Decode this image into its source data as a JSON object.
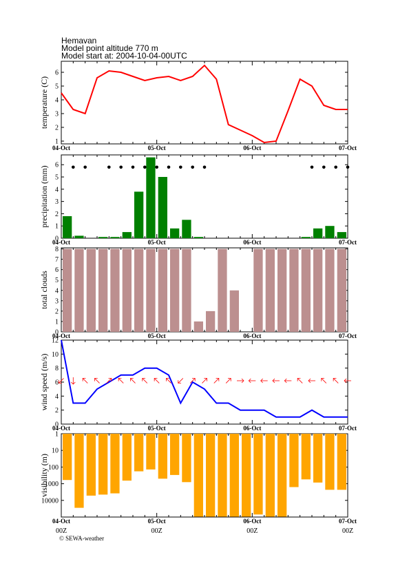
{
  "header": {
    "location": "Hemavan",
    "altitude": "Model point altitude  770 m",
    "start": "Model start at: 2004-10-04-00UTC"
  },
  "credit": "© SEWA-weather",
  "x_axis": {
    "date_labels": [
      "04-Oct",
      "05-Oct",
      "06-Oct",
      "07-Oct"
    ],
    "hour_labels": [
      "00Z",
      "00Z",
      "00Z",
      "00Z"
    ],
    "range_hours": [
      0,
      72
    ],
    "step_hours": 3
  },
  "colors": {
    "temperature": "#ff0000",
    "precipitation": "#008000",
    "clouds": "#bc8f8f",
    "wind_speed": "#0000ff",
    "wind_arrows": "#ff0000",
    "visibility": "#ffa500"
  },
  "chart_data": [
    {
      "type": "line",
      "ylabel": "temperature (C)",
      "x_hours": [
        0,
        3,
        6,
        9,
        12,
        15,
        18,
        21,
        24,
        27,
        30,
        33,
        36,
        39,
        42,
        45,
        48,
        51,
        54,
        57,
        60,
        63,
        66,
        69,
        72
      ],
      "values": [
        4.5,
        3.3,
        3.0,
        5.6,
        6.1,
        6.0,
        5.7,
        5.4,
        5.6,
        5.7,
        5.4,
        5.7,
        6.5,
        5.5,
        2.2,
        1.8,
        1.4,
        0.9,
        1.0,
        3.2,
        5.5,
        5.0,
        3.6,
        3.3,
        3.3
      ],
      "ylim": [
        0.8,
        6.8
      ],
      "yticks": [
        "1",
        "2",
        "3",
        "4",
        "5",
        "6"
      ]
    },
    {
      "type": "bar",
      "ylabel": "precipitation (mm)",
      "x_hours": [
        3,
        6,
        9,
        12,
        15,
        18,
        21,
        24,
        27,
        30,
        33,
        36,
        39,
        42,
        45,
        48,
        51,
        54,
        57,
        60,
        63,
        66,
        69,
        72
      ],
      "values": [
        1.8,
        0.2,
        0,
        0.1,
        0.1,
        0.5,
        3.8,
        6.6,
        5.0,
        0.8,
        1.5,
        0.1,
        0,
        0,
        0,
        0,
        0,
        0,
        0,
        0,
        0.1,
        0.8,
        1.0,
        0.5
      ],
      "snow_markers_hours": [
        3,
        6,
        12,
        15,
        18,
        21,
        24,
        27,
        30,
        33,
        36,
        63,
        66,
        69,
        72
      ],
      "marker_level": 5.8,
      "ylim": [
        0,
        6.8
      ],
      "yticks": [
        "0",
        "1",
        "2",
        "3",
        "4",
        "5",
        "6"
      ]
    },
    {
      "type": "bar",
      "ylabel": "total clouds",
      "x_hours": [
        3,
        6,
        9,
        12,
        15,
        18,
        21,
        24,
        27,
        30,
        33,
        36,
        39,
        42,
        45,
        48,
        51,
        54,
        57,
        60,
        63,
        66,
        69,
        72
      ],
      "values": [
        8,
        8,
        8,
        8,
        8,
        8,
        8,
        8,
        8,
        8,
        8,
        1,
        2,
        8,
        4,
        0,
        8,
        8,
        8,
        8,
        8,
        8,
        8,
        8
      ],
      "ylim": [
        0,
        8.1
      ],
      "yticks": [
        "0",
        "1",
        "2",
        "3",
        "4",
        "5",
        "6",
        "7",
        "8"
      ]
    },
    {
      "type": "line",
      "ylabel": "wind speed (m/s)",
      "x_hours": [
        0,
        3,
        6,
        9,
        12,
        15,
        18,
        21,
        24,
        27,
        30,
        33,
        36,
        39,
        42,
        45,
        48,
        51,
        54,
        57,
        60,
        63,
        66,
        69,
        72
      ],
      "values": [
        12,
        3,
        3,
        5,
        6,
        7,
        7,
        8,
        8,
        7,
        3,
        6,
        5,
        3,
        3,
        2,
        2,
        2,
        1,
        1,
        1,
        2,
        1,
        1,
        1
      ],
      "wind_direction_deg": [
        225,
        180,
        315,
        315,
        45,
        315,
        315,
        315,
        315,
        315,
        225,
        45,
        45,
        45,
        45,
        90,
        270,
        270,
        270,
        270,
        315,
        270,
        315,
        315,
        270
      ],
      "arrow_level": 6.2,
      "ylim": [
        0,
        12
      ],
      "yticks": [
        "0",
        "2",
        "4",
        "6",
        "8",
        "10",
        "12"
      ]
    },
    {
      "type": "bar",
      "ylabel": "visibility (m)",
      "log_scale": true,
      "y_inverted": true,
      "x_hours": [
        3,
        6,
        9,
        12,
        15,
        18,
        21,
        24,
        27,
        30,
        33,
        36,
        39,
        42,
        45,
        48,
        51,
        54,
        57,
        60,
        63,
        66,
        69,
        72
      ],
      "values": [
        600,
        28000,
        5200,
        4500,
        3800,
        650,
        180,
        140,
        500,
        300,
        800,
        95000,
        95000,
        95000,
        95000,
        95000,
        70000,
        95000,
        95000,
        1600,
        550,
        850,
        2300,
        2300
      ],
      "ylim": [
        1,
        100000
      ],
      "yticks": [
        "1",
        "10",
        "100",
        "1000",
        "10000"
      ]
    }
  ]
}
